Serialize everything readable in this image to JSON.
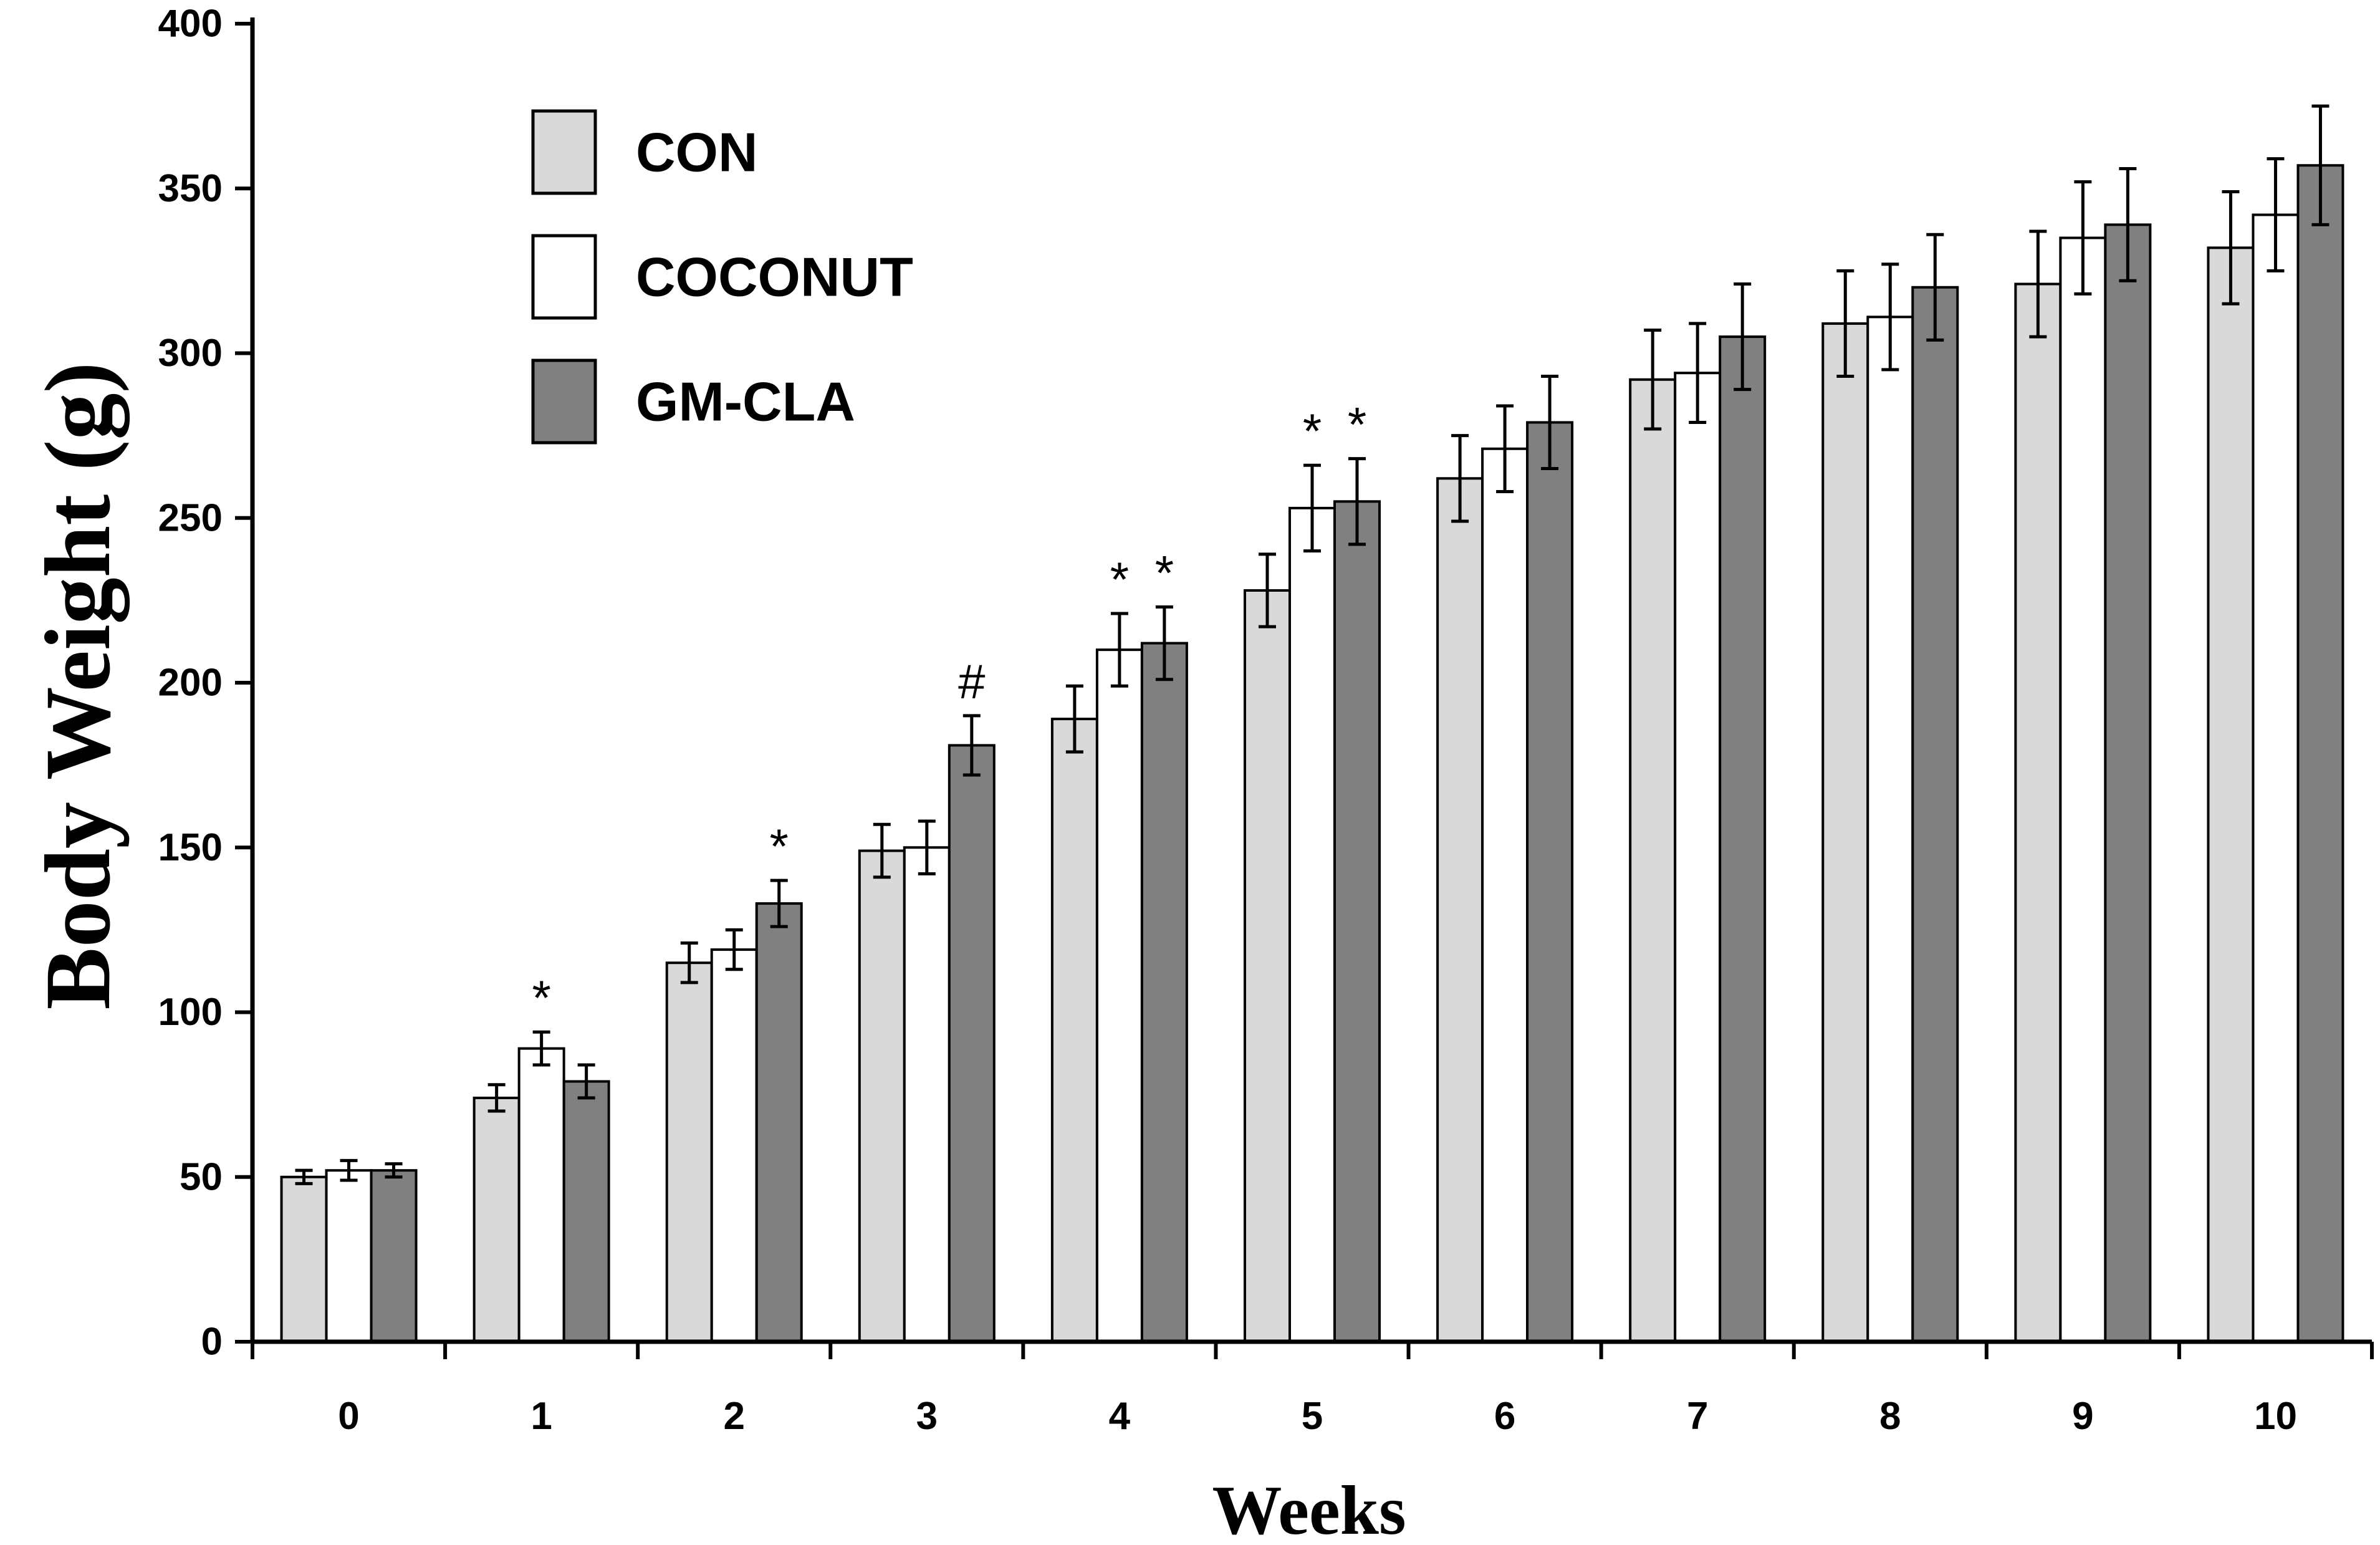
{
  "chart_data": {
    "type": "bar",
    "xlabel": "Weeks",
    "ylabel": "Body Weight (g)",
    "ylim": [
      0,
      400
    ],
    "yticks": [
      0,
      50,
      100,
      150,
      200,
      250,
      300,
      350,
      400
    ],
    "categories": [
      "0",
      "1",
      "2",
      "3",
      "4",
      "5",
      "6",
      "7",
      "8",
      "9",
      "10"
    ],
    "legend_position": "top-left",
    "grid": false,
    "series": [
      {
        "name": "CON",
        "color": "#d9d9d9",
        "values": [
          50,
          74,
          115,
          149,
          189,
          228,
          262,
          292,
          309,
          321,
          332
        ],
        "errors": [
          2,
          4,
          6,
          8,
          10,
          11,
          13,
          15,
          16,
          16,
          17
        ]
      },
      {
        "name": "COCONUT",
        "color": "#ffffff",
        "values": [
          52,
          89,
          119,
          150,
          210,
          253,
          271,
          294,
          311,
          335,
          342
        ],
        "errors": [
          3,
          5,
          6,
          8,
          11,
          13,
          13,
          15,
          16,
          17,
          17
        ]
      },
      {
        "name": "GM-CLA",
        "color": "#808080",
        "values": [
          52,
          79,
          133,
          181,
          212,
          255,
          279,
          305,
          320,
          339,
          357
        ],
        "errors": [
          2,
          5,
          7,
          9,
          11,
          13,
          14,
          16,
          16,
          17,
          18
        ]
      }
    ],
    "annotations": [
      {
        "category": "1",
        "series": 1,
        "text": "*"
      },
      {
        "category": "2",
        "series": 2,
        "text": "*"
      },
      {
        "category": "3",
        "series": 2,
        "text": "#"
      },
      {
        "category": "4",
        "series": 1,
        "text": "*"
      },
      {
        "category": "4",
        "series": 2,
        "text": "*"
      },
      {
        "category": "5",
        "series": 1,
        "text": "*"
      },
      {
        "category": "5",
        "series": 2,
        "text": "*"
      }
    ]
  }
}
